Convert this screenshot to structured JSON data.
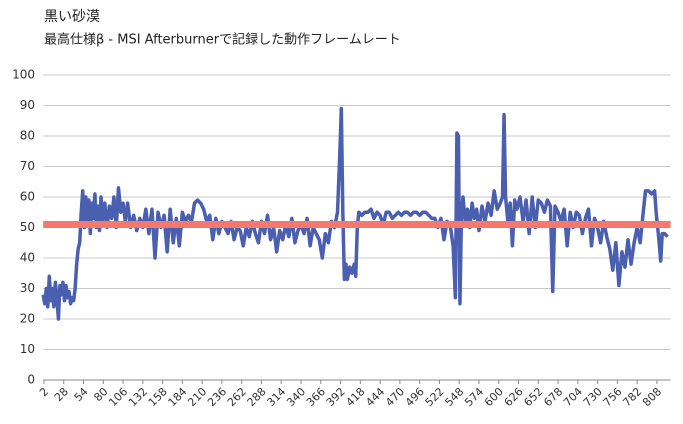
{
  "chart_data": {
    "type": "line",
    "title": "黒い砂漠",
    "subtitle": "最高仕様β - MSI Afterburnerで記録した動作フレームレート",
    "x": [
      1,
      3,
      5,
      7,
      9,
      11,
      13,
      15,
      17,
      19,
      21,
      23,
      25,
      27,
      29,
      31,
      33,
      35,
      37,
      39,
      41,
      43,
      45,
      47,
      49,
      51,
      53,
      55,
      57,
      59,
      61,
      63,
      65,
      67,
      69,
      71,
      73,
      75,
      77,
      79,
      82,
      85,
      88,
      91,
      94,
      97,
      100,
      103,
      106,
      109,
      112,
      116,
      120,
      124,
      128,
      132,
      136,
      140,
      144,
      148,
      152,
      156,
      160,
      164,
      168,
      172,
      176,
      180,
      184,
      188,
      192,
      196,
      200,
      204,
      208,
      212,
      216,
      220,
      224,
      228,
      232,
      236,
      240,
      244,
      248,
      252,
      256,
      260,
      264,
      268,
      272,
      276,
      280,
      284,
      288,
      292,
      296,
      300,
      304,
      308,
      312,
      316,
      320,
      324,
      328,
      332,
      336,
      340,
      344,
      348,
      352,
      356,
      360,
      364,
      368,
      372,
      376,
      380,
      384,
      388,
      391,
      393,
      395,
      397,
      399,
      401,
      404,
      407,
      410,
      412,
      414,
      416,
      420,
      424,
      428,
      432,
      436,
      440,
      444,
      448,
      452,
      456,
      460,
      464,
      468,
      472,
      476,
      480,
      484,
      488,
      492,
      496,
      500,
      504,
      508,
      512,
      516,
      520,
      524,
      528,
      532,
      536,
      540,
      543,
      545,
      547,
      549,
      551,
      553,
      556,
      559,
      562,
      565,
      568,
      571,
      574,
      578,
      582,
      586,
      590,
      594,
      598,
      602,
      605,
      607,
      609,
      612,
      615,
      618,
      621,
      624,
      628,
      632,
      636,
      640,
      644,
      648,
      652,
      656,
      660,
      664,
      668,
      671,
      674,
      678,
      682,
      686,
      690,
      694,
      698,
      702,
      706,
      710,
      714,
      718,
      722,
      726,
      730,
      734,
      738,
      742,
      746,
      750,
      754,
      758,
      762,
      766,
      770,
      774,
      778,
      782,
      786,
      790,
      793,
      797,
      801,
      805,
      807,
      809,
      811,
      813,
      815,
      818,
      822
    ],
    "series": [
      {
        "color": "#4a5fb0",
        "values": [
          28,
          25,
          30,
          24,
          34,
          26,
          30,
          24,
          32,
          27,
          20,
          31,
          28,
          32,
          26,
          31,
          27,
          29,
          25,
          27,
          26,
          30,
          38,
          43,
          45,
          55,
          62,
          50,
          60,
          52,
          59,
          48,
          58,
          53,
          61,
          50,
          57,
          49,
          60,
          52,
          58,
          50,
          57,
          53,
          60,
          50,
          63,
          55,
          58,
          52,
          58,
          50,
          54,
          49,
          53,
          50,
          56,
          48,
          56,
          40,
          55,
          50,
          54,
          42,
          56,
          45,
          53,
          44,
          55,
          52,
          54,
          52,
          58,
          59,
          58,
          56,
          52,
          54,
          46,
          53,
          48,
          52,
          50,
          48,
          52,
          46,
          50,
          49,
          44,
          50,
          47,
          52,
          48,
          45,
          52,
          48,
          54,
          46,
          50,
          42,
          49,
          46,
          51,
          47,
          53,
          45,
          49,
          51,
          48,
          53,
          44,
          50,
          48,
          46,
          40,
          48,
          45,
          52,
          50,
          55,
          74,
          89,
          55,
          33,
          38,
          33,
          37,
          35,
          38,
          34,
          50,
          55,
          54,
          55,
          55,
          56,
          53,
          55,
          54,
          51,
          55,
          55,
          53,
          54,
          55,
          54,
          55,
          55,
          54,
          55,
          55,
          54,
          55,
          55,
          54,
          53,
          53,
          50,
          53,
          46,
          52,
          51,
          44,
          27,
          81,
          80,
          25,
          55,
          60,
          52,
          56,
          50,
          58,
          53,
          56,
          49,
          57,
          52,
          58,
          54,
          62,
          56,
          58,
          60,
          87,
          60,
          52,
          58,
          44,
          59,
          56,
          60,
          52,
          59,
          48,
          60,
          50,
          59,
          58,
          55,
          59,
          57,
          29,
          57,
          55,
          52,
          56,
          44,
          55,
          50,
          55,
          54,
          48,
          53,
          56,
          44,
          53,
          50,
          45,
          52,
          47,
          43,
          36,
          45,
          31,
          42,
          37,
          46,
          38,
          45,
          50,
          45,
          55,
          62,
          62,
          61,
          62,
          55,
          50,
          45,
          39,
          48,
          48,
          47
        ]
      }
    ],
    "reference_line": {
      "value": 51,
      "color": "#f4786b"
    },
    "xlim": [
      1,
      826
    ],
    "xticks": [
      2,
      28,
      54,
      80,
      106,
      132,
      158,
      184,
      210,
      236,
      262,
      288,
      314,
      340,
      366,
      392,
      418,
      444,
      470,
      496,
      522,
      548,
      574,
      600,
      626,
      652,
      678,
      704,
      730,
      756,
      782,
      808
    ],
    "ylim": [
      0,
      100
    ],
    "yticks": [
      0,
      10,
      20,
      30,
      40,
      50,
      60,
      70,
      80,
      90,
      100
    ],
    "grid": true
  }
}
